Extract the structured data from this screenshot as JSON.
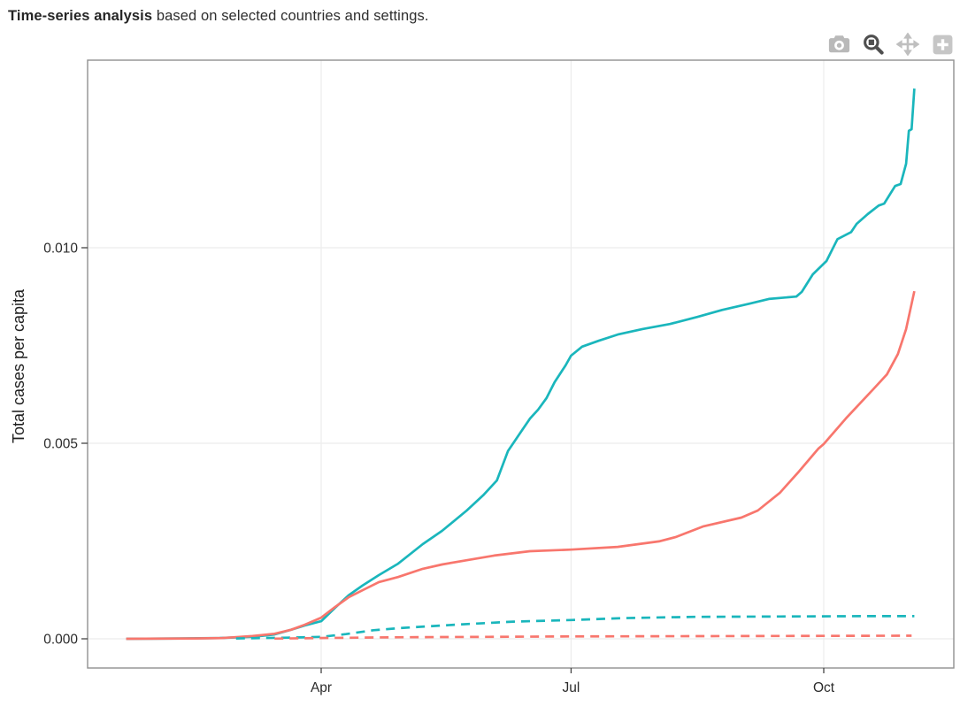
{
  "header": {
    "title_bold": "Time-series analysis",
    "title_rest": " based on selected countries and settings."
  },
  "modebar": {
    "buttons": [
      {
        "name": "download-plot",
        "icon": "camera-icon",
        "active": false
      },
      {
        "name": "zoom",
        "icon": "magnifier-icon",
        "active": true
      },
      {
        "name": "pan",
        "icon": "move-arrows-icon",
        "active": false
      },
      {
        "name": "zoom-in",
        "icon": "plus-square-icon",
        "active": false
      }
    ],
    "inactive_color": "#bbbbbb",
    "active_color": "#4f4f4f"
  },
  "chart_data": {
    "type": "line",
    "title": "",
    "xlabel": "",
    "ylabel": "Total cases per capita",
    "grid": true,
    "legend": "none",
    "x_range": [
      "2020-01-06",
      "2020-11-17"
    ],
    "y_range": [
      -0.00075,
      0.0148
    ],
    "x_ticks": [
      {
        "label": "Apr",
        "date": "2020-04-01"
      },
      {
        "label": "Jul",
        "date": "2020-07-01"
      },
      {
        "label": "Oct",
        "date": "2020-10-01"
      }
    ],
    "y_ticks": [
      {
        "label": "0.000",
        "value": 0.0
      },
      {
        "label": "0.005",
        "value": 0.005
      },
      {
        "label": "0.010",
        "value": 0.01
      }
    ],
    "series": [
      {
        "name": "teal-solid-cases",
        "color": "#1ab6bc",
        "dash": "solid",
        "points": [
          [
            "2020-01-21",
            0
          ],
          [
            "2020-02-10",
            1e-05
          ],
          [
            "2020-02-24",
            2e-05
          ],
          [
            "2020-03-07",
            5e-05
          ],
          [
            "2020-03-15",
            0.00011
          ],
          [
            "2020-03-21",
            0.00023
          ],
          [
            "2020-03-26",
            0.00034
          ],
          [
            "2020-04-01",
            0.00045
          ],
          [
            "2020-04-06",
            0.00079
          ],
          [
            "2020-04-11",
            0.00111
          ],
          [
            "2020-04-16",
            0.00136
          ],
          [
            "2020-04-22",
            0.00163
          ],
          [
            "2020-04-29",
            0.00192
          ],
          [
            "2020-05-08",
            0.00242
          ],
          [
            "2020-05-15",
            0.00276
          ],
          [
            "2020-05-24",
            0.00328
          ],
          [
            "2020-05-30",
            0.00367
          ],
          [
            "2020-06-04",
            0.00405
          ],
          [
            "2020-06-08",
            0.0048
          ],
          [
            "2020-06-13",
            0.00532
          ],
          [
            "2020-06-16",
            0.00563
          ],
          [
            "2020-06-19",
            0.00586
          ],
          [
            "2020-06-22",
            0.00615
          ],
          [
            "2020-06-25",
            0.00656
          ],
          [
            "2020-06-29",
            0.00699
          ],
          [
            "2020-07-01",
            0.00724
          ],
          [
            "2020-07-05",
            0.00747
          ],
          [
            "2020-07-11",
            0.00762
          ],
          [
            "2020-07-18",
            0.00778
          ],
          [
            "2020-07-27",
            0.00792
          ],
          [
            "2020-08-06",
            0.00805
          ],
          [
            "2020-08-16",
            0.00823
          ],
          [
            "2020-08-25",
            0.00841
          ],
          [
            "2020-09-04",
            0.00857
          ],
          [
            "2020-09-11",
            0.00869
          ],
          [
            "2020-09-21",
            0.00875
          ],
          [
            "2020-09-23",
            0.00887
          ],
          [
            "2020-09-27",
            0.00932
          ],
          [
            "2020-10-02",
            0.00966
          ],
          [
            "2020-10-06",
            0.01022
          ],
          [
            "2020-10-11",
            0.0104
          ],
          [
            "2020-10-13",
            0.01061
          ],
          [
            "2020-10-17",
            0.01086
          ],
          [
            "2020-10-21",
            0.01108
          ],
          [
            "2020-10-23",
            0.01113
          ],
          [
            "2020-10-27",
            0.01158
          ],
          [
            "2020-10-29",
            0.01163
          ],
          [
            "2020-10-31",
            0.01215
          ],
          [
            "2020-11-01",
            0.01299
          ],
          [
            "2020-11-02",
            0.01303
          ],
          [
            "2020-11-03",
            0.01407
          ]
        ]
      },
      {
        "name": "red-solid-cases",
        "color": "#f8766d",
        "dash": "solid",
        "points": [
          [
            "2020-01-21",
            0
          ],
          [
            "2020-02-15",
            1e-05
          ],
          [
            "2020-02-25",
            2e-05
          ],
          [
            "2020-03-07",
            7e-05
          ],
          [
            "2020-03-15",
            0.00013
          ],
          [
            "2020-03-21",
            0.00023
          ],
          [
            "2020-03-26",
            0.00036
          ],
          [
            "2020-04-01",
            0.00054
          ],
          [
            "2020-04-06",
            0.00081
          ],
          [
            "2020-04-11",
            0.00106
          ],
          [
            "2020-04-16",
            0.00124
          ],
          [
            "2020-04-22",
            0.00145
          ],
          [
            "2020-04-29",
            0.00158
          ],
          [
            "2020-05-08",
            0.00179
          ],
          [
            "2020-05-15",
            0.0019
          ],
          [
            "2020-05-24",
            0.00201
          ],
          [
            "2020-06-03",
            0.00213
          ],
          [
            "2020-06-16",
            0.00224
          ],
          [
            "2020-07-01",
            0.00228
          ],
          [
            "2020-07-18",
            0.00235
          ],
          [
            "2020-08-02",
            0.00249
          ],
          [
            "2020-08-08",
            0.0026
          ],
          [
            "2020-08-18",
            0.00287
          ],
          [
            "2020-09-01",
            0.0031
          ],
          [
            "2020-09-07",
            0.00328
          ],
          [
            "2020-09-15",
            0.00373
          ],
          [
            "2020-09-22",
            0.00428
          ],
          [
            "2020-09-29",
            0.00486
          ],
          [
            "2020-10-01",
            0.00498
          ],
          [
            "2020-10-09",
            0.00563
          ],
          [
            "2020-10-13",
            0.00593
          ],
          [
            "2020-10-19",
            0.00638
          ],
          [
            "2020-10-24",
            0.00676
          ],
          [
            "2020-10-28",
            0.00728
          ],
          [
            "2020-10-31",
            0.00792
          ],
          [
            "2020-11-03",
            0.00889
          ]
        ]
      },
      {
        "name": "teal-dashed",
        "color": "#1ab6bc",
        "dash": "dash",
        "points": [
          [
            "2020-03-01",
            1e-05
          ],
          [
            "2020-03-20",
            3e-05
          ],
          [
            "2020-04-01",
            5e-05
          ],
          [
            "2020-04-10",
            0.00012
          ],
          [
            "2020-04-20",
            0.00022
          ],
          [
            "2020-05-01",
            0.00028
          ],
          [
            "2020-05-10",
            0.00032
          ],
          [
            "2020-05-25",
            0.00038
          ],
          [
            "2020-06-10",
            0.00044
          ],
          [
            "2020-07-01",
            0.00048
          ],
          [
            "2020-07-20",
            0.00053
          ],
          [
            "2020-08-15",
            0.00056
          ],
          [
            "2020-09-15",
            0.00057
          ],
          [
            "2020-10-15",
            0.00058
          ],
          [
            "2020-11-03",
            0.00058
          ]
        ]
      },
      {
        "name": "red-dashed",
        "color": "#f8766d",
        "dash": "dash",
        "points": [
          [
            "2020-03-15",
            5e-06
          ],
          [
            "2020-04-01",
            2e-05
          ],
          [
            "2020-05-01",
            4e-05
          ],
          [
            "2020-06-01",
            5e-05
          ],
          [
            "2020-07-01",
            6e-05
          ],
          [
            "2020-08-01",
            6.5e-05
          ],
          [
            "2020-09-01",
            7e-05
          ],
          [
            "2020-10-01",
            7.5e-05
          ],
          [
            "2020-11-02",
            8e-05
          ]
        ]
      }
    ]
  },
  "theme": {
    "grid_color": "#ececec",
    "border_color": "#909090",
    "tick_color": "#444444",
    "tick_label_color": "#2b2b2b",
    "axis_title_color": "#1f1f1f",
    "background": "#ffffff"
  }
}
